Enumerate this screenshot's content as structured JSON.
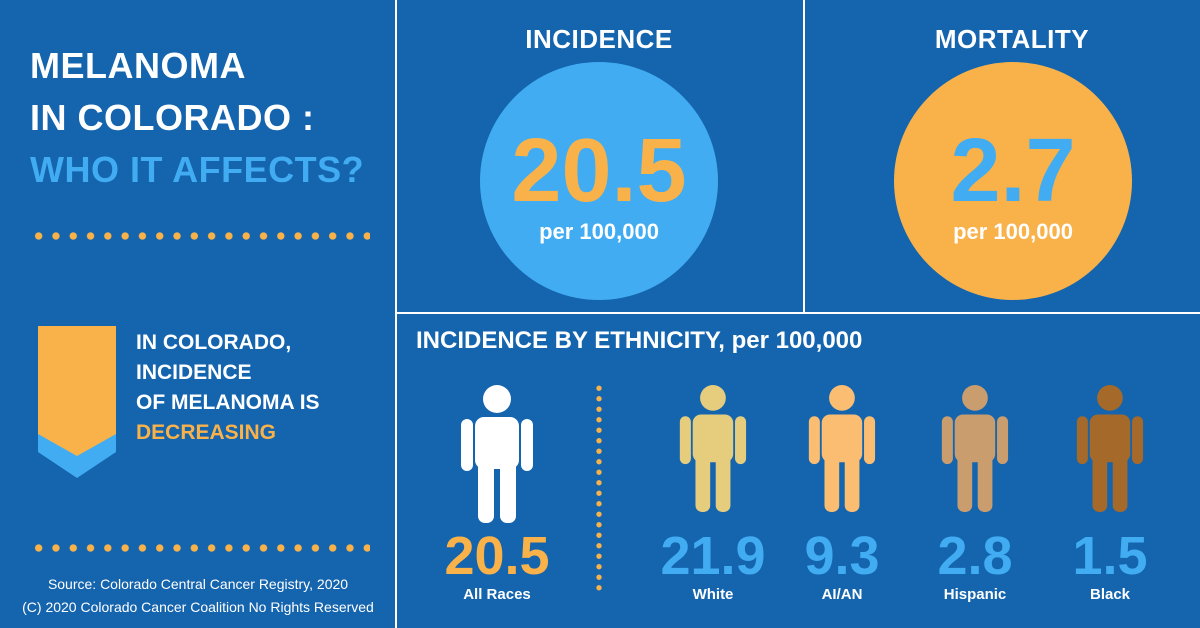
{
  "title": {
    "line1": "MELANOMA",
    "line2": "IN COLORADO :",
    "line3": "WHO IT AFFECTS?"
  },
  "trend": {
    "line1": "IN COLORADO,",
    "line2": "INCIDENCE",
    "line3": "OF MELANOMA IS",
    "highlight": "DECREASING",
    "icon": "down-ribbon-icon"
  },
  "source": {
    "line1": "Source: Colorado Central Cancer Registry, 2020",
    "line2": "(C) 2020 Colorado Cancer Coalition No Rights Reserved"
  },
  "incidence": {
    "label": "INCIDENCE",
    "value": "20.5",
    "unit": "per 100,000"
  },
  "mortality": {
    "label": "MORTALITY",
    "value": "2.7",
    "unit": "per 100,000"
  },
  "ethnicity": {
    "title": "INCIDENCE BY ETHNICITY, per 100,000",
    "groups": [
      {
        "name": "All Races",
        "value": "20.5",
        "figure_color": "#ffffff",
        "value_color": "#f9b24a"
      },
      {
        "name": "White",
        "value": "21.9",
        "figure_color": "#e6cd7e",
        "value_color": "#41acf2"
      },
      {
        "name": "AI/AN",
        "value": "9.3",
        "figure_color": "#fbbd72",
        "value_color": "#41acf2"
      },
      {
        "name": "Hispanic",
        "value": "2.8",
        "figure_color": "#c99d6d",
        "value_color": "#41acf2"
      },
      {
        "name": "Black",
        "value": "1.5",
        "figure_color": "#a5692a",
        "value_color": "#41acf2"
      }
    ]
  },
  "colors": {
    "background": "#1464ae",
    "accent_blue": "#41acf2",
    "accent_orange": "#f9b24a"
  }
}
